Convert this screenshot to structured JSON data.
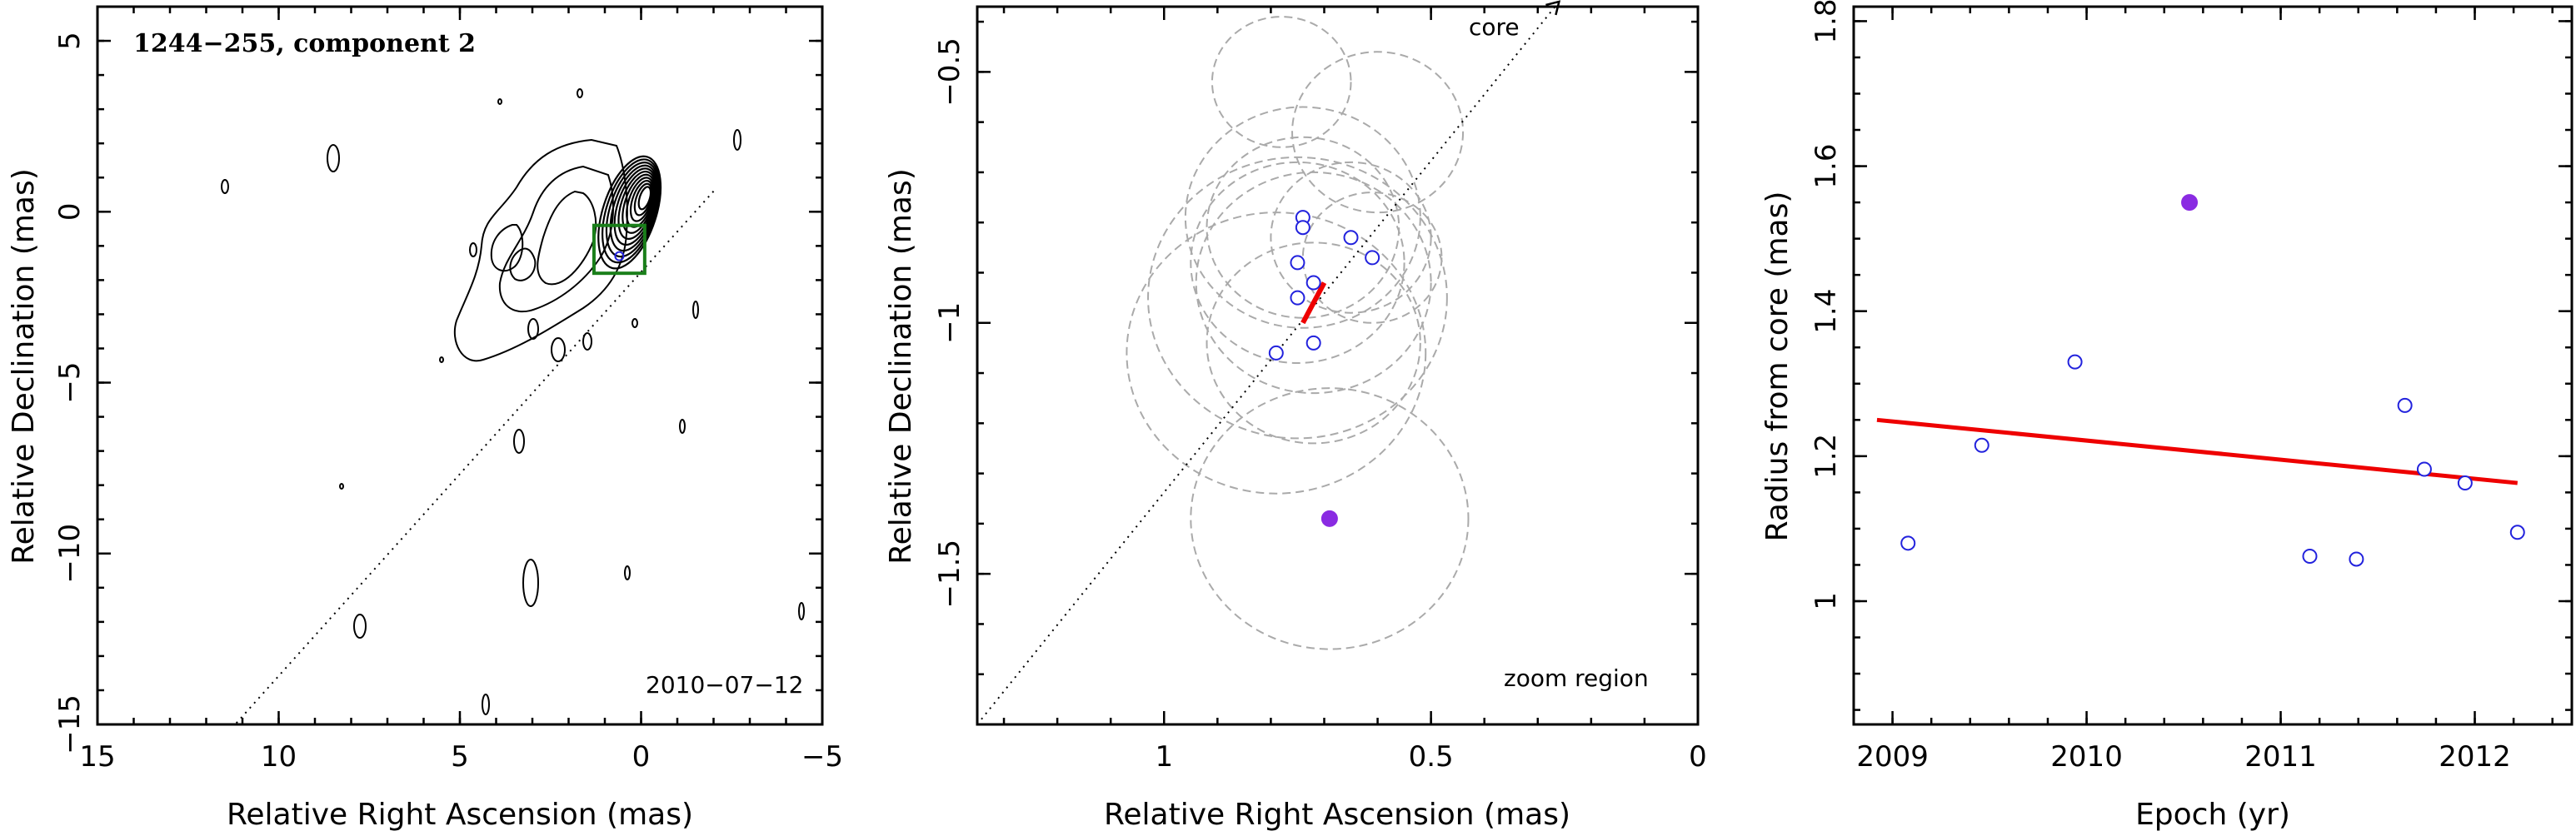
{
  "chart_data": [
    {
      "type": "contour",
      "title": "1244−255, component 2",
      "date": "2010−07−12",
      "xlabel": "Relative Right Ascension (mas)",
      "ylabel": "Relative Declination (mas)",
      "xlim": [
        15,
        -5
      ],
      "ylim": [
        -15,
        6
      ],
      "xticks": [
        15,
        10,
        5,
        0,
        -5
      ],
      "yticks": [
        -15,
        -10,
        -5,
        0,
        5
      ],
      "xticklabels": [
        "15",
        "10",
        "5",
        "0",
        "−5"
      ],
      "yticklabels": [
        "−15",
        "−10",
        "−5",
        "0",
        "5"
      ],
      "core_peak": [
        -0.1,
        0.4
      ],
      "zoom_box": {
        "x": [
          1.3,
          -0.1
        ],
        "y": [
          -1.8,
          -0.4
        ]
      },
      "jet_line": {
        "from": [
          -2,
          0.6
        ],
        "to": [
          11.2,
          -15
        ]
      },
      "component_marker": [
        0.6,
        -1.3
      ],
      "colors": {
        "contour": "#000000",
        "zoom_box": "#1a7f1a",
        "marker": "#2222dd"
      }
    },
    {
      "type": "scatter",
      "xlabel": "Relative Right Ascension (mas)",
      "ylabel": "Relative Declination (mas)",
      "xlim": [
        1.35,
        0
      ],
      "ylim": [
        -1.8,
        -0.37
      ],
      "xticks": [
        1,
        0.5,
        0
      ],
      "yticks": [
        -0.5,
        -1,
        -1.5
      ],
      "xticklabels": [
        "1",
        "0.5",
        "0"
      ],
      "yticklabels": [
        "−0.5",
        "−1",
        "−1.5"
      ],
      "core_label": "core",
      "region_label": "zoom region",
      "points": [
        {
          "x": 0.74,
          "y": -0.79,
          "r": 0.22
        },
        {
          "x": 0.74,
          "y": -0.81,
          "r": 0.18
        },
        {
          "x": 0.65,
          "y": -0.83,
          "r": 0.15
        },
        {
          "x": 0.61,
          "y": -0.87,
          "r": 0.13
        },
        {
          "x": 0.75,
          "y": -0.88,
          "r": 0.2
        },
        {
          "x": 0.72,
          "y": -0.92,
          "r": 0.22
        },
        {
          "x": 0.75,
          "y": -0.95,
          "r": 0.28
        },
        {
          "x": 0.72,
          "y": -1.04,
          "r": 0.2
        },
        {
          "x": 0.79,
          "y": -1.06,
          "r": 0.28
        }
      ],
      "filled_point": {
        "x": 0.69,
        "y": -1.39,
        "r": 0.26
      },
      "dashed_circles": [
        {
          "x": 0.78,
          "y": -0.52,
          "r": 0.13
        },
        {
          "x": 0.6,
          "y": -0.62,
          "r": 0.16
        }
      ],
      "jet_line": {
        "from": [
          1.35,
          -1.8
        ],
        "to": [
          0.26,
          -0.36
        ]
      },
      "direction_segment": {
        "from": [
          0.74,
          -1.0
        ],
        "to": [
          0.7,
          -0.92
        ]
      },
      "colors": {
        "open_marker": "#2222dd",
        "filled_marker": "#8a2be2",
        "segment": "#ee0000",
        "circles": "#aaaaaa"
      }
    },
    {
      "type": "scatter",
      "xlabel": "Epoch (yr)",
      "ylabel": "Radius from core (mas)",
      "xlim": [
        2008.8,
        2012.5
      ],
      "ylim": [
        0.83,
        1.82
      ],
      "xticks": [
        2009,
        2010,
        2011,
        2012
      ],
      "yticks": [
        1,
        1.2,
        1.4,
        1.6,
        1.8
      ],
      "xticklabels": [
        "2009",
        "2010",
        "2011",
        "2012"
      ],
      "yticklabels": [
        "1",
        "1.2",
        "1.4",
        "1.6",
        "1.8"
      ],
      "points": [
        {
          "x": 2009.08,
          "y": 1.08
        },
        {
          "x": 2009.46,
          "y": 1.215
        },
        {
          "x": 2009.94,
          "y": 1.33
        },
        {
          "x": 2011.15,
          "y": 1.062
        },
        {
          "x": 2011.39,
          "y": 1.058
        },
        {
          "x": 2011.64,
          "y": 1.27
        },
        {
          "x": 2011.74,
          "y": 1.182
        },
        {
          "x": 2011.95,
          "y": 1.163
        },
        {
          "x": 2012.22,
          "y": 1.095
        }
      ],
      "filled_point": {
        "x": 2010.53,
        "y": 1.55
      },
      "fit_line": {
        "x": [
          2008.92,
          2012.22
        ],
        "y": [
          1.25,
          1.163
        ]
      },
      "colors": {
        "open_marker": "#2222dd",
        "filled_marker": "#8a2be2",
        "fit": "#ee0000"
      }
    }
  ]
}
